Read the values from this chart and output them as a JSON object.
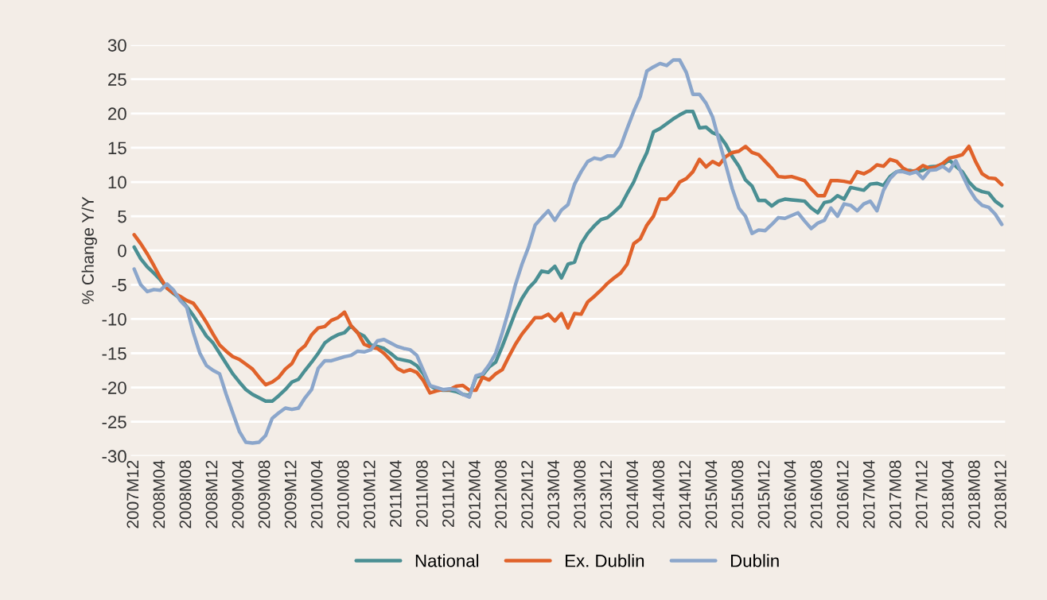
{
  "chart_data": {
    "type": "line",
    "ylabel": "% Change Y/Y",
    "categories": [
      "2007M12",
      null,
      null,
      null,
      "2008M04",
      null,
      null,
      null,
      "2008M08",
      null,
      null,
      null,
      "2008M12",
      null,
      null,
      null,
      "2009M04",
      null,
      null,
      null,
      "2009M08",
      null,
      null,
      null,
      "2009M12",
      null,
      null,
      null,
      "2010M04",
      null,
      null,
      null,
      "2010M08",
      null,
      null,
      null,
      "2010M12",
      null,
      null,
      null,
      "2011M04",
      null,
      null,
      null,
      "2011M08",
      null,
      null,
      null,
      "2011M12",
      null,
      null,
      null,
      "2012M04",
      null,
      null,
      null,
      "2012M08",
      null,
      null,
      null,
      "2012M12",
      null,
      null,
      null,
      "2013M04",
      null,
      null,
      null,
      "2013M08",
      null,
      null,
      null,
      "2013M12",
      null,
      null,
      null,
      "2014M04",
      null,
      null,
      null,
      "2014M08",
      null,
      null,
      null,
      "2014M12",
      null,
      null,
      null,
      "2015M04",
      null,
      null,
      null,
      "2015M08",
      null,
      null,
      null,
      "2015M12",
      null,
      null,
      null,
      "2016M04",
      null,
      null,
      null,
      "2016M08",
      null,
      null,
      null,
      "2016M12",
      null,
      null,
      null,
      "2017M04",
      null,
      null,
      null,
      "2017M08",
      null,
      null,
      null,
      "2017M12",
      null,
      null,
      null,
      "2018M04",
      null,
      null,
      null,
      "2018M08",
      null,
      null,
      null,
      "2018M12"
    ],
    "series": [
      {
        "name": "National",
        "color": "#4a8f93",
        "values": [
          0.5,
          -1.2,
          -2.4,
          -3.3,
          -4.3,
          -5.5,
          -6.3,
          -7.0,
          -8.2,
          -9.5,
          -11,
          -12.5,
          -13.5,
          -15,
          -16.5,
          -18,
          -19.2,
          -20.3,
          -21,
          -21.5,
          -22,
          -22,
          -21.2,
          -20.3,
          -19.2,
          -18.8,
          -17.5,
          -16.3,
          -15,
          -13.5,
          -12.8,
          -12.3,
          -12,
          -11,
          -12,
          -12.5,
          -13.8,
          -14,
          -14.3,
          -15,
          -15.8,
          -16,
          -16.2,
          -16.8,
          -18,
          -19.7,
          -20.3,
          -20.4,
          -20.4,
          -20.6,
          -21,
          -21.2,
          -18.5,
          -18.2,
          -17,
          -16.3,
          -14,
          -11.5,
          -9,
          -7,
          -5.5,
          -4.5,
          -3,
          -3.2,
          -2.3,
          -4,
          -2,
          -1.7,
          1,
          2.5,
          3.6,
          4.5,
          4.8,
          5.6,
          6.5,
          8.3,
          10,
          12.3,
          14.3,
          17.3,
          17.8,
          18.5,
          19.2,
          19.8,
          20.3,
          20.3,
          17.9,
          18,
          17.2,
          16.8,
          15.5,
          13.7,
          12.3,
          10.3,
          9.4,
          7.3,
          7.3,
          6.5,
          7.2,
          7.5,
          7.4,
          7.3,
          7.2,
          6.2,
          5.5,
          7,
          7.2,
          8,
          7.5,
          9.2,
          9,
          8.8,
          9.7,
          9.8,
          9.5,
          10.8,
          11.5,
          11.7,
          11.7,
          11.5,
          11.7,
          12.2,
          12.3,
          12.5,
          13.2,
          12.3,
          11.5,
          10,
          9,
          8.6,
          8.4,
          7.2,
          6.5
        ]
      },
      {
        "name": "Ex. Dublin",
        "color": "#e0622a",
        "values": [
          2.3,
          1,
          -0.5,
          -2.2,
          -4,
          -5.5,
          -6.2,
          -6.7,
          -7.3,
          -7.7,
          -9,
          -10.5,
          -12.2,
          -13.8,
          -14.7,
          -15.5,
          -15.9,
          -16.6,
          -17.3,
          -18.5,
          -19.6,
          -19.2,
          -18.5,
          -17.3,
          -16.5,
          -14.7,
          -13.9,
          -12.3,
          -11.3,
          -11.1,
          -10.2,
          -9.8,
          -9,
          -11,
          -12,
          -13.7,
          -14.1,
          -14.3,
          -15,
          -16,
          -17.2,
          -17.7,
          -17.4,
          -17.8,
          -19,
          -20.8,
          -20.5,
          -20.3,
          -20.3,
          -19.8,
          -19.7,
          -20.4,
          -20.4,
          -18.5,
          -18.9,
          -18,
          -17.4,
          -15.5,
          -13.7,
          -12.2,
          -11,
          -9.8,
          -9.8,
          -9.3,
          -10.3,
          -9.2,
          -11.3,
          -9.2,
          -9.3,
          -7.5,
          -6.7,
          -5.8,
          -4.8,
          -4,
          -3.3,
          -2,
          1,
          1.7,
          3.7,
          5,
          7.5,
          7.5,
          8.5,
          10,
          10.5,
          11.5,
          13.3,
          12.2,
          13,
          12.5,
          13.7,
          14.3,
          14.5,
          15.2,
          14.3,
          14,
          13,
          12,
          10.8,
          10.7,
          10.8,
          10.5,
          10.2,
          9,
          8,
          8,
          10.2,
          10.2,
          10.1,
          9.9,
          11.5,
          11.2,
          11.7,
          12.5,
          12.3,
          13.3,
          13,
          12,
          11.5,
          11.7,
          12.4,
          12,
          12.2,
          12.7,
          13.5,
          13.7,
          14,
          15.2,
          13,
          11.2,
          10.6,
          10.5,
          9.6
        ]
      },
      {
        "name": "Dublin",
        "color": "#8ba6cb",
        "values": [
          -2.7,
          -5,
          -6,
          -5.7,
          -5.8,
          -4.9,
          -5.8,
          -7.3,
          -8.3,
          -12,
          -15,
          -16.8,
          -17.5,
          -18,
          -21,
          -23.7,
          -26.4,
          -28,
          -28.1,
          -28,
          -27,
          -24.5,
          -23.7,
          -23,
          -23.2,
          -23,
          -21.5,
          -20.3,
          -17.2,
          -16.1,
          -16.1,
          -15.8,
          -15.5,
          -15.3,
          -14.7,
          -14.8,
          -14.5,
          -13.2,
          -13,
          -13.5,
          -14,
          -14.3,
          -14.5,
          -15.3,
          -17.5,
          -19.7,
          -20,
          -20.3,
          -20.2,
          -20.3,
          -21,
          -21.4,
          -18.3,
          -18,
          -16.7,
          -15,
          -12,
          -8.7,
          -5,
          -2,
          0.5,
          3.7,
          4.8,
          5.8,
          4.4,
          5.9,
          6.7,
          9.7,
          11.5,
          13,
          13.5,
          13.3,
          13.8,
          13.8,
          15.2,
          17.8,
          20.3,
          22.5,
          26.2,
          26.8,
          27.3,
          27,
          27.8,
          27.8,
          26,
          22.8,
          22.8,
          21.5,
          19.5,
          16,
          12.5,
          9,
          6.2,
          5,
          2.5,
          3,
          2.9,
          3.8,
          4.8,
          4.7,
          5.1,
          5.5,
          4.3,
          3.2,
          4,
          4.4,
          6.2,
          5,
          6.8,
          6.6,
          5.8,
          6.8,
          7.2,
          5.8,
          8.8,
          10.5,
          11.5,
          11.5,
          11.2,
          11.5,
          10.5,
          11.7,
          11.8,
          12.3,
          11.6,
          13.1,
          11,
          9,
          7.5,
          6.6,
          6.3,
          5.3,
          3.8
        ]
      }
    ],
    "ylim": [
      -30,
      30
    ],
    "yticks": [
      -30,
      -25,
      -20,
      -15,
      -10,
      -5,
      0,
      5,
      10,
      15,
      20,
      25,
      30
    ],
    "grid": "y",
    "legend": "bottom",
    "marker": "none",
    "line_style": "solid"
  }
}
